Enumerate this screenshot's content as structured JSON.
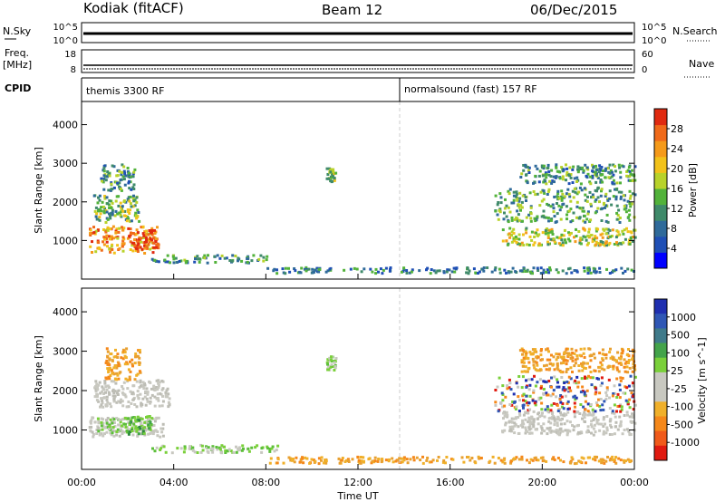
{
  "header": {
    "station": "Kodiak (fitACF)",
    "beam": "Beam 12",
    "date": "06/Dec/2015"
  },
  "top_panels": {
    "nsky_label": "N.Sky",
    "nsky_ticks": [
      "10^5",
      "10^0"
    ],
    "nsearch_label": "N.Search",
    "nsearch_ticks": [
      "10^5",
      "10^0"
    ],
    "freq_label_1": "Freq.",
    "freq_label_2": "[MHz]",
    "freq_ticks": [
      "18",
      "8"
    ],
    "nave_label": "Nave",
    "nave_ticks": [
      "60",
      "0"
    ],
    "cpid_label": "CPID",
    "cpid_segments": [
      {
        "label": "themis 3300 RF",
        "start_hour": 0
      },
      {
        "label": "normalsound (fast) 157 RF",
        "start_hour": 14
      }
    ]
  },
  "chart_data": [
    {
      "type": "heatmap",
      "panel": "power",
      "ylabel": "Slant Range [km]",
      "ylim": [
        0,
        4600
      ],
      "yticks": [
        "1000",
        "2000",
        "3000",
        "4000"
      ],
      "colorbar": {
        "label": "Power [dB]",
        "ticks": [
          "4",
          "8",
          "12",
          "16",
          "20",
          "24",
          "28"
        ],
        "colors": [
          "#0000ff",
          "#1f4fb5",
          "#2f6a9a",
          "#3f8a6a",
          "#52b23a",
          "#b8d22a",
          "#f2c21a",
          "#f59a1a",
          "#f06a1a",
          "#e02a10"
        ]
      },
      "regions": [
        {
          "t0": 0.3,
          "t1": 3.3,
          "r0": 700,
          "r1": 1400,
          "level": 0.75
        },
        {
          "t0": 2.0,
          "t1": 3.2,
          "r0": 800,
          "r1": 1300,
          "level": 0.95
        },
        {
          "t0": 0.5,
          "t1": 2.5,
          "r0": 1500,
          "r1": 2200,
          "level": 0.45
        },
        {
          "t0": 0.8,
          "t1": 2.3,
          "r0": 2300,
          "r1": 3000,
          "level": 0.35
        },
        {
          "t0": 3.0,
          "t1": 8.0,
          "r0": 450,
          "r1": 650,
          "level": 0.35
        },
        {
          "t0": 10.6,
          "t1": 11.0,
          "r0": 2550,
          "r1": 2900,
          "level": 0.45
        },
        {
          "t0": 8.0,
          "t1": 24.0,
          "r0": 180,
          "r1": 330,
          "level": 0.3
        },
        {
          "t0": 18.2,
          "t1": 24.0,
          "r0": 900,
          "r1": 1350,
          "level": 0.55
        },
        {
          "t0": 17.9,
          "t1": 24.0,
          "r0": 1500,
          "r1": 2400,
          "level": 0.4
        },
        {
          "t0": 19.0,
          "t1": 24.0,
          "r0": 2500,
          "r1": 3000,
          "level": 0.35
        }
      ]
    },
    {
      "type": "heatmap",
      "panel": "velocity",
      "xlabel": "Time UT",
      "ylabel": "Slant Range [km]",
      "ylim": [
        0,
        4600
      ],
      "yticks": [
        "1000",
        "2000",
        "3000",
        "4000"
      ],
      "xticks": [
        "00:00",
        "04:00",
        "08:00",
        "12:00",
        "16:00",
        "20:00",
        "00:00"
      ],
      "xlim": [
        0,
        24
      ],
      "colorbar": {
        "label": "Velocity [m s^-1]",
        "ticks": [
          "1000",
          "500",
          "100",
          "25",
          "-25",
          "-100",
          "-500",
          "-1000"
        ],
        "colors": [
          "#1f2fb0",
          "#2f57b5",
          "#3f7a8a",
          "#43a34a",
          "#7ad03a",
          "#c8c8c0",
          "#c8c8c0",
          "#f0b02a",
          "#f5881a",
          "#f05a1a",
          "#e01a10"
        ]
      },
      "regions": [
        {
          "t0": 0.3,
          "t1": 3.5,
          "r0": 850,
          "r1": 1350,
          "level": "gray"
        },
        {
          "t0": 0.6,
          "t1": 3.0,
          "r0": 950,
          "r1": 1350,
          "level": "green"
        },
        {
          "t0": 2.0,
          "t1": 3.0,
          "r0": 900,
          "r1": 1400,
          "level": "darkgreen"
        },
        {
          "t0": 0.5,
          "t1": 3.8,
          "r0": 1600,
          "r1": 2300,
          "level": "gray"
        },
        {
          "t0": 1.0,
          "t1": 2.5,
          "r0": 2300,
          "r1": 3100,
          "level": "orange"
        },
        {
          "t0": 3.0,
          "t1": 8.5,
          "r0": 450,
          "r1": 650,
          "level": "green"
        },
        {
          "t0": 10.6,
          "t1": 11.0,
          "r0": 2550,
          "r1": 2900,
          "level": "green"
        },
        {
          "t0": 8.0,
          "t1": 24.0,
          "r0": 180,
          "r1": 350,
          "level": "orange"
        },
        {
          "t0": 18.2,
          "t1": 24.0,
          "r0": 900,
          "r1": 1500,
          "level": "gray"
        },
        {
          "t0": 17.9,
          "t1": 24.0,
          "r0": 1500,
          "r1": 2400,
          "level": "mixed"
        },
        {
          "t0": 19.0,
          "t1": 24.0,
          "r0": 2500,
          "r1": 3100,
          "level": "orange"
        }
      ]
    }
  ]
}
